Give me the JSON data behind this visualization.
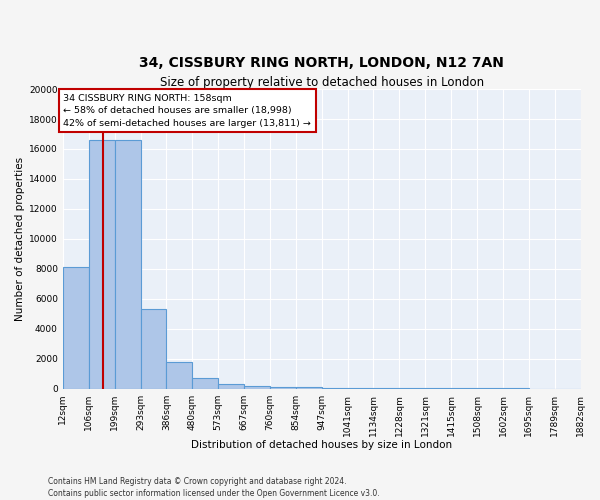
{
  "title": "34, CISSBURY RING NORTH, LONDON, N12 7AN",
  "subtitle": "Size of property relative to detached houses in London",
  "xlabel": "Distribution of detached houses by size in London",
  "ylabel": "Number of detached properties",
  "bar_edges": [
    12,
    106,
    199,
    293,
    386,
    480,
    573,
    667,
    760,
    854,
    947,
    1041,
    1134,
    1228,
    1321,
    1415,
    1508,
    1602,
    1695,
    1789,
    1882
  ],
  "bar_heights": [
    8100,
    16600,
    16600,
    5300,
    1800,
    700,
    350,
    200,
    150,
    100,
    80,
    60,
    50,
    45,
    40,
    35,
    30,
    25,
    20,
    15
  ],
  "bar_color": "#aec6e8",
  "bar_edge_color": "#5b9bd5",
  "vline_x": 158,
  "vline_color": "#c00000",
  "annotation_text": "34 CISSBURY RING NORTH: 158sqm\n← 58% of detached houses are smaller (18,998)\n42% of semi-detached houses are larger (13,811) →",
  "annotation_box_color": "#c00000",
  "ylim": [
    0,
    20000
  ],
  "yticks": [
    0,
    2000,
    4000,
    6000,
    8000,
    10000,
    12000,
    14000,
    16000,
    18000,
    20000
  ],
  "xtick_labels": [
    "12sqm",
    "106sqm",
    "199sqm",
    "293sqm",
    "386sqm",
    "480sqm",
    "573sqm",
    "667sqm",
    "760sqm",
    "854sqm",
    "947sqm",
    "1041sqm",
    "1134sqm",
    "1228sqm",
    "1321sqm",
    "1415sqm",
    "1508sqm",
    "1602sqm",
    "1695sqm",
    "1789sqm",
    "1882sqm"
  ],
  "footer": "Contains HM Land Registry data © Crown copyright and database right 2024.\nContains public sector information licensed under the Open Government Licence v3.0.",
  "bg_color": "#eaf0f8",
  "fig_bg_color": "#f5f5f5",
  "grid_color": "#ffffff",
  "title_fontsize": 10,
  "subtitle_fontsize": 8.5,
  "axis_label_fontsize": 7.5,
  "tick_fontsize": 6.5,
  "footer_fontsize": 5.5
}
